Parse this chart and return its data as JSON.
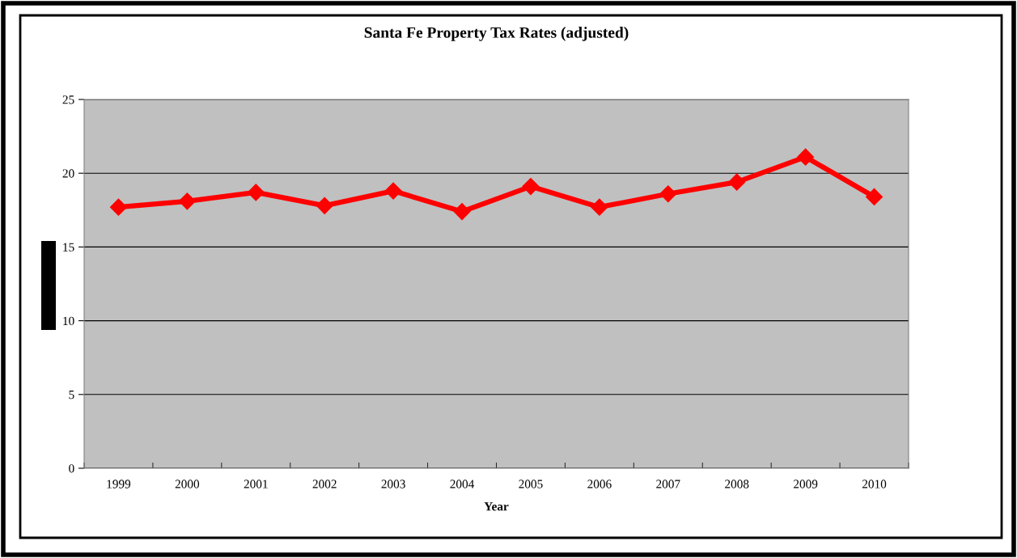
{
  "chart_data": {
    "type": "line",
    "title": "Santa Fe Property Tax Rates (adjusted)",
    "xlabel": "Year",
    "categories": [
      "1999",
      "2000",
      "2001",
      "2002",
      "2003",
      "2004",
      "2005",
      "2006",
      "2007",
      "2008",
      "2009",
      "2010"
    ],
    "series": [
      {
        "color": "#ff0000",
        "values": [
          17.7,
          18.1,
          18.7,
          17.8,
          18.8,
          17.4,
          19.1,
          17.7,
          18.6,
          19.4,
          21.1,
          18.4
        ]
      }
    ],
    "ylim": [
      0,
      25
    ],
    "yticks": [
      0,
      5,
      10,
      15,
      20,
      25
    ],
    "grid": "y",
    "legend": false,
    "marker": "diamond",
    "line_style": "solid"
  }
}
